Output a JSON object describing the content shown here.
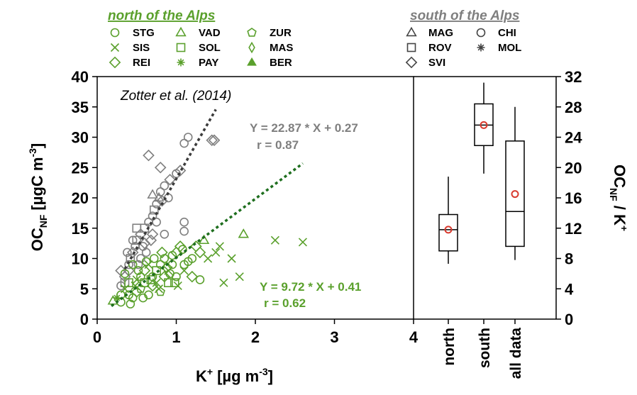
{
  "colors": {
    "north": "#5aa02c",
    "south": "#7f7f7f",
    "north_fit": "#1e6e1e",
    "south_fit": "#3c3c3c",
    "mean_marker": "#d83a2e",
    "axis": "#000000"
  },
  "legend": {
    "north_title": "north of the Alps",
    "south_title": "south of the Alps",
    "north_sites": [
      {
        "code": "STG",
        "symbol": "circle"
      },
      {
        "code": "VAD",
        "symbol": "triangle"
      },
      {
        "code": "ZUR",
        "symbol": "pentagon"
      },
      {
        "code": "SIS",
        "symbol": "cross"
      },
      {
        "code": "SOL",
        "symbol": "square"
      },
      {
        "code": "MAS",
        "symbol": "diamond-thin"
      },
      {
        "code": "REI",
        "symbol": "diamond"
      },
      {
        "code": "PAY",
        "symbol": "asterisk"
      },
      {
        "code": "BER",
        "symbol": "triangle-filled"
      }
    ],
    "south_sites": [
      {
        "code": "MAG",
        "symbol": "triangle"
      },
      {
        "code": "CHI",
        "symbol": "circle"
      },
      {
        "code": "ROV",
        "symbol": "square"
      },
      {
        "code": "MOL",
        "symbol": "asterisk"
      },
      {
        "code": "SVI",
        "symbol": "diamond"
      }
    ]
  },
  "chart_data": [
    {
      "type": "scatter",
      "annotation": "Zotter et al. (2014)",
      "xlabel": "K",
      "xlabel_sup": "+",
      "xlabel_unit": "[µg m",
      "xlabel_unit_sup": "-3",
      "xlabel_end": "]",
      "ylabel": "OC",
      "ylabel_sub": "NF",
      "ylabel_unit": "[µgC m",
      "ylabel_unit_sup": "-3",
      "ylabel_end": "]",
      "xlim": [
        0,
        4
      ],
      "ylim": [
        0,
        40
      ],
      "xticks": [
        0,
        1,
        2,
        3,
        4
      ],
      "yticks": [
        0,
        5,
        10,
        15,
        20,
        25,
        30,
        35,
        40
      ],
      "fits": [
        {
          "group": "south",
          "equation": "Y = 22.87 * X + 0.27",
          "r": "r = 0.87",
          "slope": 22.87,
          "intercept": 0.27,
          "x_range": [
            0.35,
            1.5
          ]
        },
        {
          "group": "north",
          "equation": "Y = 9.72 * X + 0.41",
          "r": "r = 0.62",
          "slope": 9.72,
          "intercept": 0.41,
          "x_range": [
            0.18,
            2.6
          ]
        }
      ],
      "series": [
        {
          "group": "south",
          "points": [
            [
              0.3,
              5.5,
              "circle"
            ],
            [
              0.35,
              7,
              "diamond"
            ],
            [
              0.4,
              9,
              "circle"
            ],
            [
              0.42,
              10,
              "square"
            ],
            [
              0.45,
              11,
              "diamond"
            ],
            [
              0.48,
              12,
              "circle"
            ],
            [
              0.5,
              13,
              "square"
            ],
            [
              0.52,
              9,
              "circle"
            ],
            [
              0.55,
              14,
              "diamond"
            ],
            [
              0.58,
              12,
              "circle"
            ],
            [
              0.6,
              15,
              "square"
            ],
            [
              0.62,
              11,
              "circle"
            ],
            [
              0.65,
              16,
              "circle"
            ],
            [
              0.68,
              13,
              "diamond"
            ],
            [
              0.7,
              17,
              "circle"
            ],
            [
              0.72,
              18,
              "square"
            ],
            [
              0.75,
              19,
              "circle"
            ],
            [
              0.78,
              20,
              "triangle"
            ],
            [
              0.8,
              21,
              "circle"
            ],
            [
              0.82,
              19.5,
              "diamond"
            ],
            [
              0.85,
              22,
              "circle"
            ],
            [
              0.9,
              20,
              "circle"
            ],
            [
              0.7,
              20.5,
              "triangle"
            ],
            [
              0.65,
              27,
              "diamond"
            ],
            [
              0.8,
              25,
              "diamond"
            ],
            [
              0.92,
              23,
              "diamond"
            ],
            [
              1.0,
              24,
              "circle"
            ],
            [
              1.05,
              24.5,
              "diamond"
            ],
            [
              1.1,
              29,
              "circle"
            ],
            [
              1.15,
              30,
              "circle"
            ],
            [
              1.45,
              29.5,
              "diamond"
            ],
            [
              1.48,
              29.5,
              "diamond"
            ],
            [
              1.1,
              16,
              "circle"
            ],
            [
              1.1,
              14.5,
              "circle"
            ],
            [
              0.85,
              14,
              "circle"
            ],
            [
              0.4,
              8,
              "diamond"
            ],
            [
              0.55,
              10,
              "circle"
            ],
            [
              0.45,
              13,
              "circle"
            ],
            [
              0.35,
              6,
              "square"
            ],
            [
              0.6,
              12.5,
              "diamond"
            ],
            [
              0.5,
              15,
              "square"
            ],
            [
              0.75,
              16,
              "circle"
            ],
            [
              0.7,
              14,
              "diamond"
            ],
            [
              0.3,
              8,
              "diamond"
            ],
            [
              0.38,
              11,
              "circle"
            ]
          ]
        },
        {
          "group": "north",
          "points": [
            [
              0.2,
              3,
              "triangle"
            ],
            [
              0.3,
              4,
              "circle"
            ],
            [
              0.35,
              5,
              "cross"
            ],
            [
              0.4,
              6,
              "square"
            ],
            [
              0.42,
              2.5,
              "circle"
            ],
            [
              0.45,
              3.5,
              "circle"
            ],
            [
              0.5,
              4.5,
              "diamond"
            ],
            [
              0.5,
              6.5,
              "cross"
            ],
            [
              0.55,
              5,
              "pentagon"
            ],
            [
              0.55,
              7,
              "circle"
            ],
            [
              0.6,
              6,
              "square"
            ],
            [
              0.6,
              8,
              "diamond"
            ],
            [
              0.65,
              4,
              "circle"
            ],
            [
              0.65,
              9,
              "cross"
            ],
            [
              0.7,
              7,
              "circle"
            ],
            [
              0.7,
              5.5,
              "diamond"
            ],
            [
              0.75,
              8,
              "square"
            ],
            [
              0.75,
              6,
              "cross"
            ],
            [
              0.8,
              9,
              "circle"
            ],
            [
              0.8,
              4.5,
              "pentagon"
            ],
            [
              0.85,
              7,
              "diamond"
            ],
            [
              0.85,
              10,
              "circle"
            ],
            [
              0.9,
              8,
              "cross"
            ],
            [
              0.9,
              6,
              "square"
            ],
            [
              0.95,
              9,
              "circle"
            ],
            [
              1.0,
              11,
              "diamond"
            ],
            [
              1.0,
              7,
              "circle"
            ],
            [
              1.05,
              12,
              "diamond"
            ],
            [
              1.1,
              9,
              "circle"
            ],
            [
              1.1,
              8,
              "cross"
            ],
            [
              1.2,
              10,
              "circle"
            ],
            [
              1.2,
              7,
              "diamond"
            ],
            [
              1.25,
              12,
              "diamond"
            ],
            [
              1.3,
              6.5,
              "circle"
            ],
            [
              1.35,
              13,
              "triangle"
            ],
            [
              1.4,
              10,
              "cross"
            ],
            [
              1.5,
              11,
              "cross"
            ],
            [
              1.55,
              12,
              "cross"
            ],
            [
              1.6,
              6,
              "cross"
            ],
            [
              1.7,
              10,
              "cross"
            ],
            [
              1.8,
              7,
              "cross"
            ],
            [
              1.85,
              14,
              "triangle"
            ],
            [
              2.25,
              13,
              "cross"
            ],
            [
              2.6,
              12.7,
              "cross"
            ],
            [
              1.3,
              11,
              "diamond"
            ],
            [
              0.95,
              10.5,
              "circle"
            ],
            [
              1.15,
              9.5,
              "circle"
            ],
            [
              0.4,
              4,
              "circle"
            ],
            [
              0.3,
              2.8,
              "circle"
            ],
            [
              0.48,
              5.5,
              "cross"
            ],
            [
              0.58,
              3.5,
              "circle"
            ],
            [
              0.68,
              6.5,
              "square"
            ],
            [
              0.78,
              5,
              "cross"
            ],
            [
              0.88,
              8.5,
              "diamond"
            ],
            [
              0.98,
              6,
              "square"
            ],
            [
              1.08,
              11.5,
              "circle"
            ],
            [
              0.52,
              8,
              "circle"
            ],
            [
              0.62,
              9.5,
              "circle"
            ],
            [
              0.72,
              10,
              "circle"
            ],
            [
              0.82,
              11,
              "diamond"
            ],
            [
              0.92,
              7.5,
              "circle"
            ],
            [
              1.02,
              5.5,
              "cross"
            ],
            [
              0.25,
              3.5,
              "asterisk"
            ],
            [
              0.35,
              7.5,
              "circle"
            ],
            [
              0.45,
              9,
              "circle"
            ]
          ]
        }
      ]
    },
    {
      "type": "box",
      "ylabel": "OC",
      "ylabel_sub": "NF",
      "ylabel_after": " / K",
      "ylabel_sup": "+",
      "ylim": [
        0,
        32
      ],
      "yticks": [
        0,
        4,
        8,
        12,
        16,
        20,
        24,
        28,
        32
      ],
      "categories": [
        "north",
        "south",
        "all data"
      ],
      "boxes": [
        {
          "category": "north",
          "whisker_low": 7.3,
          "q1": 9.0,
          "median": 11.8,
          "q3": 13.8,
          "whisker_high": 18.8,
          "mean": 11.8
        },
        {
          "category": "south",
          "whisker_low": 19.2,
          "q1": 22.9,
          "median": 25.6,
          "q3": 28.4,
          "whisker_high": 31.2,
          "mean": 25.6
        },
        {
          "category": "all data",
          "whisker_low": 7.8,
          "q1": 9.6,
          "median": 14.2,
          "q3": 23.5,
          "whisker_high": 28.0,
          "mean": 16.5
        }
      ]
    }
  ]
}
